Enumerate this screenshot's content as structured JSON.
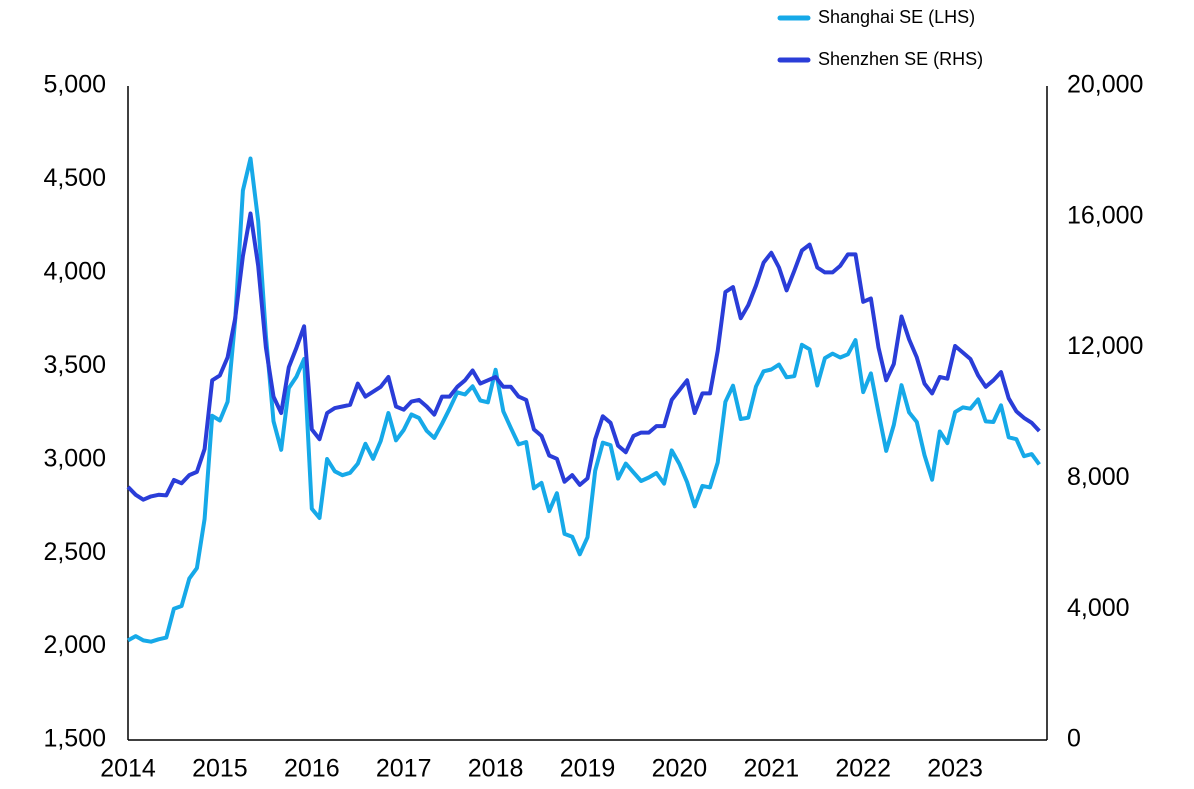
{
  "chart_data": {
    "type": "line",
    "categories": [
      "2014",
      null,
      null,
      null,
      null,
      null,
      null,
      null,
      null,
      null,
      null,
      null,
      "2015",
      null,
      null,
      null,
      null,
      null,
      null,
      null,
      null,
      null,
      null,
      null,
      "2016",
      null,
      null,
      null,
      null,
      null,
      null,
      null,
      null,
      null,
      null,
      null,
      "2017",
      null,
      null,
      null,
      null,
      null,
      null,
      null,
      null,
      null,
      null,
      null,
      "2018",
      null,
      null,
      null,
      null,
      null,
      null,
      null,
      null,
      null,
      null,
      null,
      "2019",
      null,
      null,
      null,
      null,
      null,
      null,
      null,
      null,
      null,
      null,
      null,
      "2020",
      null,
      null,
      null,
      null,
      null,
      null,
      null,
      null,
      null,
      null,
      null,
      "2021",
      null,
      null,
      null,
      null,
      null,
      null,
      null,
      null,
      null,
      null,
      null,
      "2022",
      null,
      null,
      null,
      null,
      null,
      null,
      null,
      null,
      null,
      null,
      null,
      "2023",
      null,
      null,
      null,
      null,
      null,
      null,
      null,
      null,
      null,
      null,
      null
    ],
    "series": [
      {
        "name": "Shanghai SE (LHS)",
        "color": "#16a9e8",
        "axis": "y",
        "values": [
          2033,
          2056,
          2033,
          2026,
          2039,
          2048,
          2202,
          2217,
          2364,
          2420,
          2683,
          3235,
          3210,
          3310,
          3748,
          4441,
          4612,
          4277,
          3664,
          3206,
          3053,
          3383,
          3445,
          3539,
          2738,
          2688,
          3004,
          2938,
          2917,
          2930,
          2979,
          3085,
          3005,
          3100,
          3250,
          3104,
          3159,
          3242,
          3223,
          3155,
          3117,
          3192,
          3273,
          3361,
          3349,
          3393,
          3317,
          3307,
          3481,
          3259,
          3169,
          3082,
          3095,
          2847,
          2876,
          2725,
          2821,
          2603,
          2588,
          2494,
          2585,
          2941,
          3091,
          3078,
          2899,
          2979,
          2932,
          2886,
          2905,
          2929,
          2872,
          3050,
          2977,
          2880,
          2750,
          2860,
          2852,
          2985,
          3310,
          3396,
          3218,
          3225,
          3392,
          3473,
          3483,
          3509,
          3441,
          3447,
          3615,
          3591,
          3397,
          3544,
          3568,
          3547,
          3564,
          3640,
          3362,
          3462,
          3252,
          3047,
          3186,
          3399,
          3253,
          3202,
          3024,
          2893,
          3151,
          3089,
          3255,
          3280,
          3273,
          3323,
          3205,
          3202,
          3291,
          3120,
          3110,
          3019,
          3030,
          2975
        ]
      },
      {
        "name": "Shenzhen SE (RHS)",
        "color": "#2a3dd8",
        "axis": "y2",
        "values": [
          7740,
          7500,
          7350,
          7450,
          7500,
          7480,
          7950,
          7850,
          8100,
          8200,
          8900,
          11000,
          11150,
          11700,
          12900,
          14800,
          16100,
          14500,
          12000,
          10500,
          10000,
          11400,
          12000,
          12650,
          9500,
          9200,
          10000,
          10150,
          10200,
          10250,
          10900,
          10500,
          10650,
          10800,
          11100,
          10200,
          10100,
          10350,
          10400,
          10200,
          9950,
          10500,
          10500,
          10800,
          11000,
          11300,
          10900,
          11000,
          11100,
          10800,
          10800,
          10500,
          10400,
          9500,
          9300,
          8700,
          8600,
          7900,
          8100,
          7800,
          8000,
          9200,
          9900,
          9700,
          9000,
          8800,
          9300,
          9400,
          9400,
          9600,
          9600,
          10400,
          10700,
          11000,
          10000,
          10600,
          10600,
          11900,
          13700,
          13850,
          12900,
          13300,
          13900,
          14600,
          14900,
          14450,
          13750,
          14350,
          14970,
          15150,
          14450,
          14300,
          14300,
          14500,
          14850,
          14850,
          13400,
          13500,
          12000,
          11000,
          11500,
          12950,
          12250,
          11700,
          10900,
          10600,
          11100,
          11050,
          12050,
          11850,
          11650,
          11150,
          10800,
          11000,
          11250,
          10450,
          10050,
          9850,
          9700,
          9450
        ]
      }
    ],
    "ylim": [
      1500,
      5000
    ],
    "yticks": [
      {
        "value": 1500,
        "label": "1,500"
      },
      {
        "value": 2000,
        "label": "2,000"
      },
      {
        "value": 2500,
        "label": "2,500"
      },
      {
        "value": 3000,
        "label": "3,000"
      },
      {
        "value": 3500,
        "label": "3,500"
      },
      {
        "value": 4000,
        "label": "4,000"
      },
      {
        "value": 4500,
        "label": "4,500"
      },
      {
        "value": 5000,
        "label": "5,000"
      }
    ],
    "y2lim": [
      0,
      20000
    ],
    "y2ticks": [
      0,
      {
        "value": 4000,
        "label": "4,000"
      },
      {
        "value": 8000,
        "label": "8,000"
      },
      {
        "value": 12000,
        "label": "12,000"
      },
      {
        "value": 16000,
        "label": "16,000"
      },
      {
        "value": 20000,
        "label": "20,000"
      }
    ],
    "legend": "top-right",
    "grid": false
  }
}
